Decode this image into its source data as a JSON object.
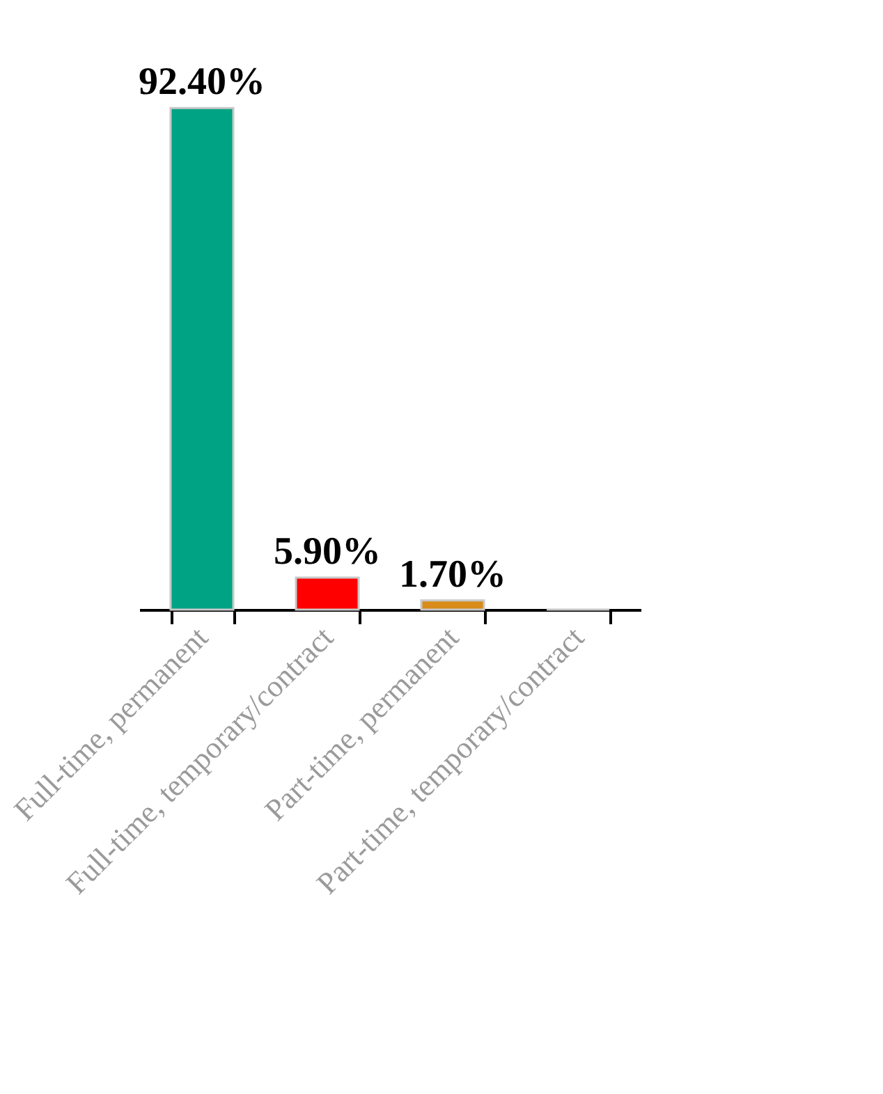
{
  "chart_data": {
    "type": "bar",
    "categories": [
      "Full-time, permanent",
      "Full-time, temporary/contract",
      "Part-time, permanent",
      "Part-time, temporary/contract"
    ],
    "values": [
      92.4,
      5.9,
      1.7,
      0
    ],
    "colors": [
      "#00a383",
      "#ff0000",
      "#d98c1a",
      "#c8c8c8"
    ],
    "value_labels": [
      "92.40%",
      "5.90%",
      "1.70%",
      null
    ]
  }
}
